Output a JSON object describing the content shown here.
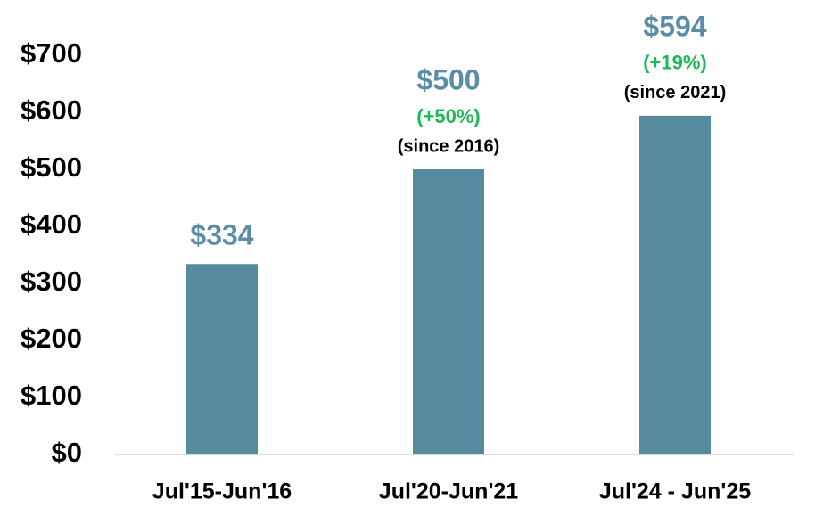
{
  "chart_data": {
    "type": "bar",
    "categories": [
      "Jul'15-Jun'16",
      "Jul'20-Jun'21",
      "Jul'24 - Jun'25"
    ],
    "values": [
      334,
      500,
      594
    ],
    "value_labels": [
      "$334",
      "$500",
      "$594"
    ],
    "growth_labels": [
      null,
      "(+50%)",
      "(+19%)"
    ],
    "since_labels": [
      null,
      "(since 2016)",
      "(since 2021)"
    ],
    "color": "#568a9f",
    "ylim": [
      0,
      700
    ],
    "yticks": [
      {
        "value": 0,
        "label": "$0"
      },
      {
        "value": 100,
        "label": "$100"
      },
      {
        "value": 200,
        "label": "$200"
      },
      {
        "value": 300,
        "label": "$300"
      },
      {
        "value": 400,
        "label": "$400"
      },
      {
        "value": 500,
        "label": "$500"
      },
      {
        "value": 600,
        "label": "$600"
      },
      {
        "value": 700,
        "label": "$700"
      }
    ],
    "grid": false
  }
}
